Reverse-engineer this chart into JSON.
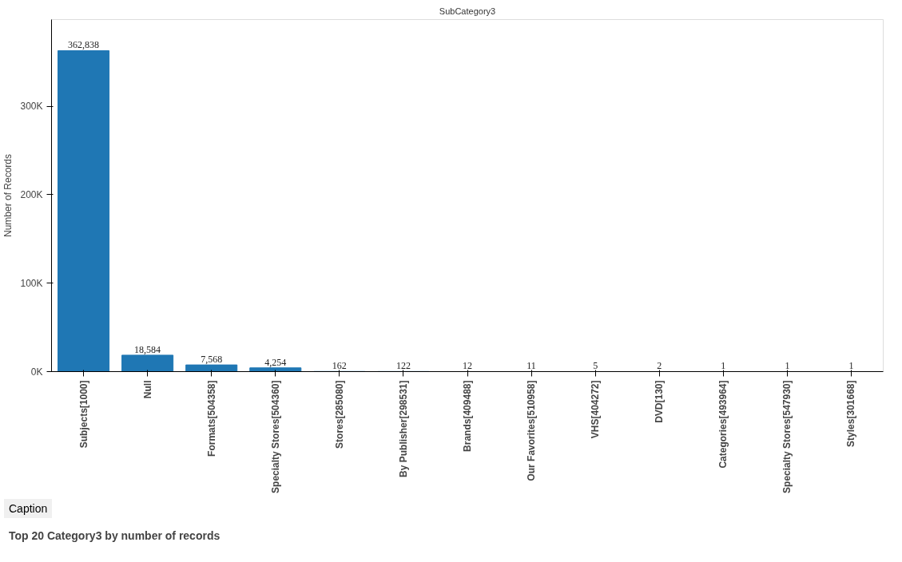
{
  "chart_data": {
    "type": "bar",
    "title": "SubCategory3",
    "ylabel": "Number of Records",
    "categories": [
      "Subjects[1000]",
      "Null",
      "Formats[504358]",
      "Specialty Stores[504360]",
      "Stores[285080]",
      "By Publisher[298531]",
      "Brands[409488]",
      "Our Favorites[510958]",
      "VHS[404272]",
      "DVD[130]",
      "Categories[493964]",
      "Specialty Stores[547930]",
      "Styles[301668]"
    ],
    "values": [
      362838,
      18584,
      7568,
      4254,
      162,
      122,
      12,
      11,
      5,
      2,
      1,
      1,
      1
    ],
    "value_labels": [
      "362,838",
      "18,584",
      "7,568",
      "4,254",
      "162",
      "122",
      "12",
      "11",
      "5",
      "2",
      "1",
      "1",
      "1"
    ],
    "color": "#1f77b4",
    "ylim": [
      0,
      398000
    ],
    "yticks": [
      {
        "value": 0,
        "label": "0K"
      },
      {
        "value": 100000,
        "label": "100K"
      },
      {
        "value": 200000,
        "label": "200K"
      },
      {
        "value": 300000,
        "label": "300K"
      }
    ],
    "grid": false,
    "annotations": [
      "Caption",
      "Top 20 Category3 by number of records"
    ]
  }
}
